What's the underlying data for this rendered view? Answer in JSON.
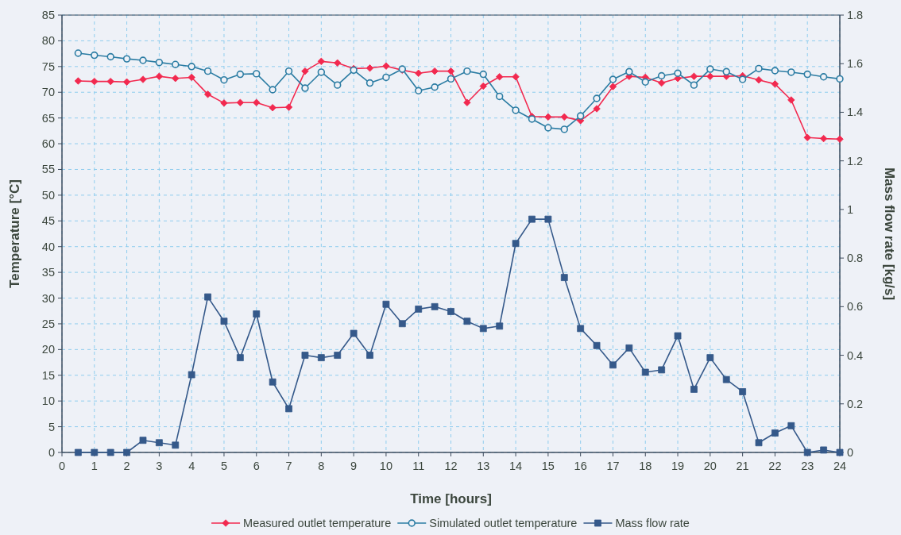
{
  "chart_data": {
    "type": "line",
    "xlabel": "Time [hours]",
    "ylabel": "Temperature [°C]",
    "y2label": "Mass flow rate [kg/s]",
    "x": [
      0.5,
      1,
      1.5,
      2,
      2.5,
      3,
      3.5,
      4,
      4.5,
      5,
      5.5,
      6,
      6.5,
      7,
      7.5,
      8,
      8.5,
      9,
      9.5,
      10,
      10.5,
      11,
      11.5,
      12,
      12.5,
      13,
      13.5,
      14,
      14.5,
      15,
      15.5,
      16,
      16.5,
      17,
      17.5,
      18,
      18.5,
      19,
      19.5,
      20,
      20.5,
      21,
      21.5,
      22,
      22.5,
      23,
      23.5,
      24
    ],
    "xlim": [
      0,
      24
    ],
    "xticks": [
      0,
      1,
      2,
      3,
      4,
      5,
      6,
      7,
      8,
      9,
      10,
      11,
      12,
      13,
      14,
      15,
      16,
      17,
      18,
      19,
      20,
      21,
      22,
      23,
      24
    ],
    "ylim": [
      0,
      85
    ],
    "yticks": [
      0,
      5,
      10,
      15,
      20,
      25,
      30,
      35,
      40,
      45,
      50,
      55,
      60,
      65,
      70,
      75,
      80,
      85
    ],
    "y2lim": [
      0,
      1.8
    ],
    "y2ticks": [
      0,
      0.2,
      0.4,
      0.6,
      0.8,
      1,
      1.2,
      1.4,
      1.6,
      1.8
    ],
    "grid": true,
    "legend": "bottom",
    "line_style": "solid",
    "series": [
      {
        "name": "Measured outlet temperature",
        "color": "#f2294f",
        "marker": "diamond",
        "values": [
          72.2,
          72.1,
          72.1,
          72.0,
          72.5,
          73.1,
          72.7,
          72.9,
          69.6,
          67.9,
          68.0,
          68.0,
          67.0,
          67.1,
          74.1,
          76.0,
          75.7,
          74.6,
          74.7,
          75.1,
          74.3,
          73.7,
          74.1,
          74.1,
          68.0,
          71.2,
          73.0,
          73.0,
          65.3,
          65.2,
          65.2,
          64.5,
          66.8,
          71.1,
          73.1,
          72.9,
          71.8,
          72.7,
          73.1,
          73.1,
          73.1,
          73.2,
          72.4,
          71.6,
          68.5,
          61.2,
          61.0,
          60.9
        ]
      },
      {
        "name": "Simulated outlet temperature",
        "color": "#2b7ca3",
        "marker": "circle",
        "values": [
          77.6,
          77.2,
          76.9,
          76.5,
          76.2,
          75.8,
          75.4,
          75.0,
          74.1,
          72.4,
          73.5,
          73.6,
          70.5,
          74.1,
          70.8,
          73.9,
          71.4,
          74.3,
          71.8,
          72.9,
          74.5,
          70.3,
          71.0,
          72.6,
          74.1,
          73.5,
          69.2,
          66.5,
          64.8,
          63.1,
          62.8,
          65.4,
          68.8,
          72.5,
          74.0,
          72.0,
          73.2,
          73.7,
          71.4,
          74.5,
          74.0,
          72.5,
          74.6,
          74.2,
          73.9,
          73.5,
          73.0,
          72.6
        ]
      },
      {
        "name": "Mass flow rate",
        "color": "#35598a",
        "marker": "square",
        "axis": "y2",
        "values": [
          0,
          0,
          0,
          0,
          0.05,
          0.04,
          0.03,
          0.32,
          0.64,
          0.54,
          0.39,
          0.57,
          0.29,
          0.18,
          0.4,
          0.39,
          0.4,
          0.49,
          0.4,
          0.61,
          0.53,
          0.59,
          0.6,
          0.58,
          0.54,
          0.51,
          0.52,
          0.86,
          0.96,
          0.96,
          0.72,
          0.51,
          0.44,
          0.36,
          0.43,
          0.33,
          0.34,
          0.48,
          0.26,
          0.39,
          0.3,
          0.25,
          0.04,
          0.08,
          0.11,
          0,
          0.01,
          0
        ]
      }
    ]
  }
}
